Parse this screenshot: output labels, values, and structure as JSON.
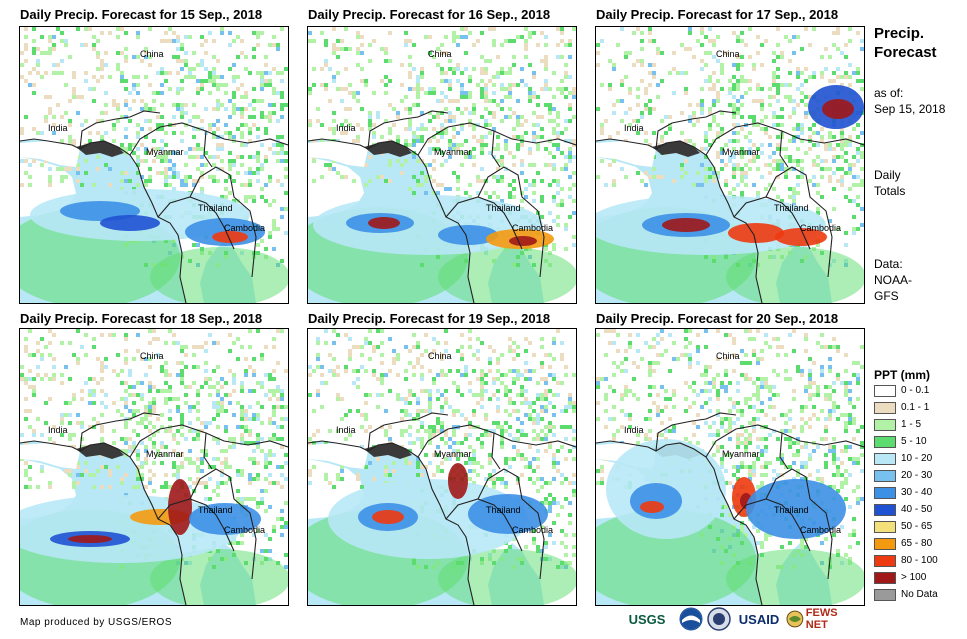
{
  "panels": [
    {
      "title": "Daily Precip. Forecast for 15 Sep., 2018",
      "labels": {
        "china": "China",
        "india": "India",
        "myanmar": "Myanmar",
        "thailand": "Thailand",
        "cambodia": "Cambodia"
      }
    },
    {
      "title": "Daily Precip. Forecast for 16 Sep., 2018",
      "labels": {
        "china": "China",
        "india": "India",
        "myanmar": "Myanmar",
        "thailand": "Thailand",
        "cambodia": "Cambodia"
      }
    },
    {
      "title": "Daily Precip. Forecast for 17 Sep., 2018",
      "labels": {
        "china": "China",
        "india": "India",
        "myanmar": "Myanmar",
        "thailand": "Thailand",
        "cambodia": "Cambodia"
      }
    },
    {
      "title": "Daily Precip. Forecast for 18 Sep., 2018",
      "labels": {
        "china": "China",
        "india": "India",
        "myanmar": "Myanmar",
        "thailand": "Thailand",
        "cambodia": "Cambodia"
      }
    },
    {
      "title": "Daily Precip. Forecast for 19 Sep., 2018",
      "labels": {
        "china": "China",
        "india": "India",
        "myanmar": "Myanmar",
        "thailand": "Thailand",
        "cambodia": "Cambodia"
      }
    },
    {
      "title": "Daily Precip. Forecast for 20 Sep., 2018",
      "labels": {
        "china": "China",
        "india": "India",
        "myanmar": "Myanmar",
        "thailand": "Thailand",
        "cambodia": "Cambodia"
      }
    }
  ],
  "sidebar": {
    "title_line1": "Precip.",
    "title_line2": "Forecast",
    "asof_line1": "as of:",
    "asof_line2": "Sep 15, 2018",
    "totals_line1": "Daily",
    "totals_line2": "Totals",
    "data_line1": "Data:",
    "data_line2": "NOAA-",
    "data_line3": "GFS"
  },
  "legend": {
    "title": "PPT (mm)",
    "items": [
      {
        "label": "0 - 0.1",
        "color": "#ffffff"
      },
      {
        "label": "0.1 - 1",
        "color": "#ecdcc0"
      },
      {
        "label": "1 - 5",
        "color": "#b2f2a6"
      },
      {
        "label": "5 - 10",
        "color": "#5cdc6e"
      },
      {
        "label": "10 - 20",
        "color": "#b8e8f6"
      },
      {
        "label": "20 - 30",
        "color": "#78c0ee"
      },
      {
        "label": "30 - 40",
        "color": "#3c90e6"
      },
      {
        "label": "40 - 50",
        "color": "#1f52d2"
      },
      {
        "label": "50 - 65",
        "color": "#f4e07a"
      },
      {
        "label": "65 - 80",
        "color": "#f49a10"
      },
      {
        "label": "80 - 100",
        "color": "#ee3a10"
      },
      {
        "label": "> 100",
        "color": "#a01818"
      },
      {
        "label": "No Data",
        "color": "#9a9a9a"
      }
    ]
  },
  "footer": {
    "credit": "Map produced by USGS/EROS",
    "logos": [
      {
        "name": "usgs",
        "text": "USGS"
      },
      {
        "name": "noaa",
        "text": "NOAA"
      },
      {
        "name": "dhs",
        "text": "DHS"
      },
      {
        "name": "usaid",
        "text": "USAID"
      },
      {
        "name": "fewsnet",
        "text": "FEWS NET"
      }
    ]
  }
}
